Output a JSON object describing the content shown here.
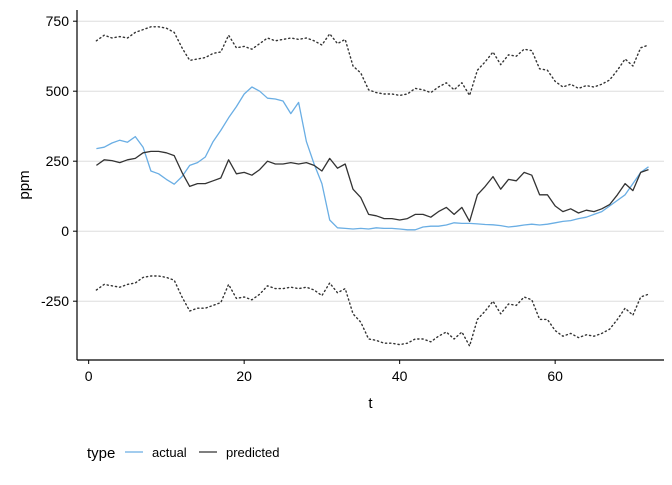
{
  "chart_data": {
    "type": "line",
    "xlabel": "t",
    "ylabel": "ppm",
    "xlim": [
      -1.5,
      74
    ],
    "ylim": [
      -460,
      790
    ],
    "x_ticks": [
      0,
      20,
      40,
      60
    ],
    "y_ticks": [
      -250,
      0,
      250,
      500,
      750
    ],
    "x_tick_labels": [
      "0",
      "20",
      "40",
      "60"
    ],
    "y_tick_labels": [
      "-250",
      "0",
      "250",
      "500",
      "750"
    ],
    "grid": "horizontal",
    "legend": {
      "title": "type",
      "placement": "bottom-left",
      "entries": [
        {
          "label": "actual",
          "color": "#6aaee4"
        },
        {
          "label": "predicted",
          "color": "#333333"
        }
      ]
    },
    "series": [
      {
        "name": "actual",
        "color": "#6aaee4",
        "x": [
          1,
          2,
          3,
          4,
          5,
          6,
          7,
          8,
          9,
          10,
          11,
          12,
          13,
          14,
          15,
          16,
          17,
          18,
          19,
          20,
          21,
          22,
          23,
          24,
          25,
          26,
          27,
          28,
          29,
          30,
          31,
          32,
          33,
          34,
          35,
          36,
          37,
          38,
          39,
          40,
          41,
          42,
          43,
          44,
          45,
          46,
          47,
          48,
          49,
          50,
          51,
          52,
          53,
          54,
          55,
          56,
          57,
          58,
          59,
          60,
          61,
          62,
          63,
          64,
          65,
          66,
          67,
          68,
          69,
          70,
          71,
          72
        ],
        "y": [
          295,
          300,
          315,
          325,
          318,
          338,
          300,
          215,
          205,
          185,
          168,
          195,
          235,
          245,
          265,
          320,
          360,
          405,
          445,
          490,
          515,
          500,
          475,
          472,
          465,
          420,
          460,
          320,
          240,
          170,
          40,
          12,
          10,
          8,
          10,
          8,
          12,
          10,
          10,
          8,
          5,
          5,
          15,
          18,
          18,
          22,
          30,
          28,
          28,
          26,
          24,
          23,
          20,
          15,
          18,
          22,
          25,
          22,
          25,
          30,
          35,
          38,
          45,
          50,
          60,
          70,
          90,
          110,
          130,
          170,
          210,
          230
        ]
      },
      {
        "name": "predicted",
        "color": "#333333",
        "x": [
          1,
          2,
          3,
          4,
          5,
          6,
          7,
          8,
          9,
          10,
          11,
          12,
          13,
          14,
          15,
          16,
          17,
          18,
          19,
          20,
          21,
          22,
          23,
          24,
          25,
          26,
          27,
          28,
          29,
          30,
          31,
          32,
          33,
          34,
          35,
          36,
          37,
          38,
          39,
          40,
          41,
          42,
          43,
          44,
          45,
          46,
          47,
          48,
          49,
          50,
          51,
          52,
          53,
          54,
          55,
          56,
          57,
          58,
          59,
          60,
          61,
          62,
          63,
          64,
          65,
          66,
          67,
          68,
          69,
          70,
          71,
          72
        ],
        "y": [
          235,
          255,
          252,
          245,
          255,
          260,
          280,
          285,
          285,
          280,
          270,
          210,
          160,
          170,
          170,
          180,
          190,
          255,
          205,
          210,
          200,
          220,
          250,
          240,
          240,
          245,
          240,
          245,
          235,
          215,
          260,
          225,
          240,
          150,
          120,
          60,
          55,
          45,
          45,
          40,
          45,
          60,
          60,
          50,
          70,
          85,
          60,
          85,
          35,
          130,
          160,
          195,
          150,
          185,
          180,
          210,
          200,
          130,
          130,
          90,
          70,
          80,
          65,
          75,
          70,
          80,
          95,
          130,
          170,
          145,
          210,
          220
        ]
      },
      {
        "name": "",
        "color": "#333333",
        "style": "dotted",
        "x": [
          1,
          2,
          3,
          4,
          5,
          6,
          7,
          8,
          9,
          10,
          11,
          12,
          13,
          14,
          15,
          16,
          17,
          18,
          19,
          20,
          21,
          22,
          23,
          24,
          25,
          26,
          27,
          28,
          29,
          30,
          31,
          32,
          33,
          34,
          35,
          36,
          37,
          38,
          39,
          40,
          41,
          42,
          43,
          44,
          45,
          46,
          47,
          48,
          49,
          50,
          51,
          52,
          53,
          54,
          55,
          56,
          57,
          58,
          59,
          60,
          61,
          62,
          63,
          64,
          65,
          66,
          67,
          68,
          69,
          70,
          71,
          72
        ],
        "y": [
          680,
          700,
          690,
          695,
          690,
          710,
          720,
          730,
          730,
          725,
          710,
          655,
          610,
          615,
          620,
          635,
          640,
          700,
          655,
          660,
          650,
          670,
          690,
          680,
          685,
          690,
          685,
          690,
          680,
          665,
          705,
          670,
          685,
          590,
          565,
          505,
          495,
          490,
          490,
          485,
          490,
          510,
          505,
          495,
          515,
          530,
          505,
          530,
          485,
          575,
          605,
          640,
          595,
          630,
          625,
          650,
          645,
          580,
          575,
          535,
          515,
          525,
          510,
          520,
          515,
          525,
          540,
          575,
          615,
          590,
          655,
          665
        ]
      },
      {
        "name": "",
        "color": "#333333",
        "style": "dotted",
        "x": [
          1,
          2,
          3,
          4,
          5,
          6,
          7,
          8,
          9,
          10,
          11,
          12,
          13,
          14,
          15,
          16,
          17,
          18,
          19,
          20,
          21,
          22,
          23,
          24,
          25,
          26,
          27,
          28,
          29,
          30,
          31,
          32,
          33,
          34,
          35,
          36,
          37,
          38,
          39,
          40,
          41,
          42,
          43,
          44,
          45,
          46,
          47,
          48,
          49,
          50,
          51,
          52,
          53,
          54,
          55,
          56,
          57,
          58,
          59,
          60,
          61,
          62,
          63,
          64,
          65,
          66,
          67,
          68,
          69,
          70,
          71,
          72
        ],
        "y": [
          -210,
          -190,
          -195,
          -200,
          -190,
          -185,
          -165,
          -160,
          -160,
          -165,
          -175,
          -235,
          -285,
          -275,
          -275,
          -265,
          -255,
          -190,
          -240,
          -235,
          -245,
          -225,
          -195,
          -205,
          -205,
          -200,
          -205,
          -200,
          -210,
          -230,
          -185,
          -220,
          -205,
          -295,
          -325,
          -385,
          -390,
          -400,
          -400,
          -405,
          -400,
          -385,
          -385,
          -395,
          -375,
          -360,
          -385,
          -360,
          -410,
          -315,
          -285,
          -250,
          -295,
          -260,
          -265,
          -235,
          -245,
          -315,
          -315,
          -355,
          -375,
          -365,
          -380,
          -370,
          -375,
          -365,
          -350,
          -315,
          -275,
          -300,
          -235,
          -225
        ]
      }
    ]
  }
}
